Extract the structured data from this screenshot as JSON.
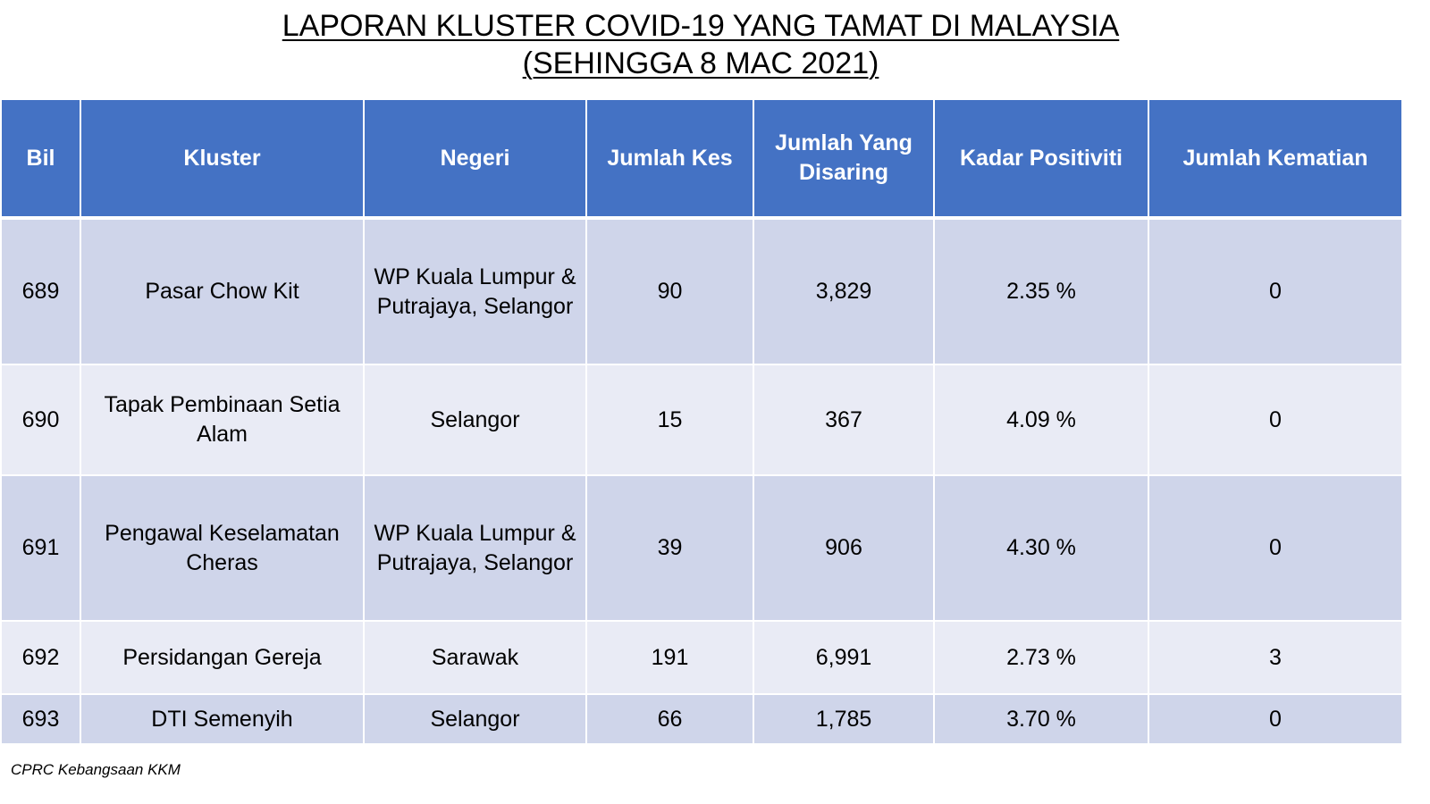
{
  "title": {
    "line1": "LAPORAN KLUSTER COVID-19 YANG TAMAT DI MALAYSIA",
    "line2": "(SEHINGGA 8 MAC 2021)"
  },
  "table": {
    "headers": [
      "Bil",
      "Kluster",
      "Negeri",
      "Jumlah Kes",
      "Jumlah Yang Disaring",
      "Kadar Positiviti",
      "Jumlah Kematian"
    ],
    "rows": [
      [
        "689",
        "Pasar Chow Kit",
        "WP Kuala Lumpur & Putrajaya, Selangor",
        "90",
        "3,829",
        "2.35 %",
        "0"
      ],
      [
        "690",
        "Tapak Pembinaan Setia Alam",
        "Selangor",
        "15",
        "367",
        "4.09 %",
        "0"
      ],
      [
        "691",
        "Pengawal Keselamatan Cheras",
        "WP Kuala Lumpur & Putrajaya, Selangor",
        "39",
        "906",
        "4.30 %",
        "0"
      ],
      [
        "692",
        "Persidangan Gereja",
        "Sarawak",
        "191",
        "6,991",
        "2.73 %",
        "3"
      ],
      [
        "693",
        "DTI Semenyih",
        "Selangor",
        "66",
        "1,785",
        "3.70 %",
        "0"
      ]
    ]
  },
  "footer": "CPRC Kebangsaan KKM",
  "colors": {
    "header_bg": "#4472c4",
    "row_dark": "#cfd5ea",
    "row_light": "#e9ebf5"
  }
}
